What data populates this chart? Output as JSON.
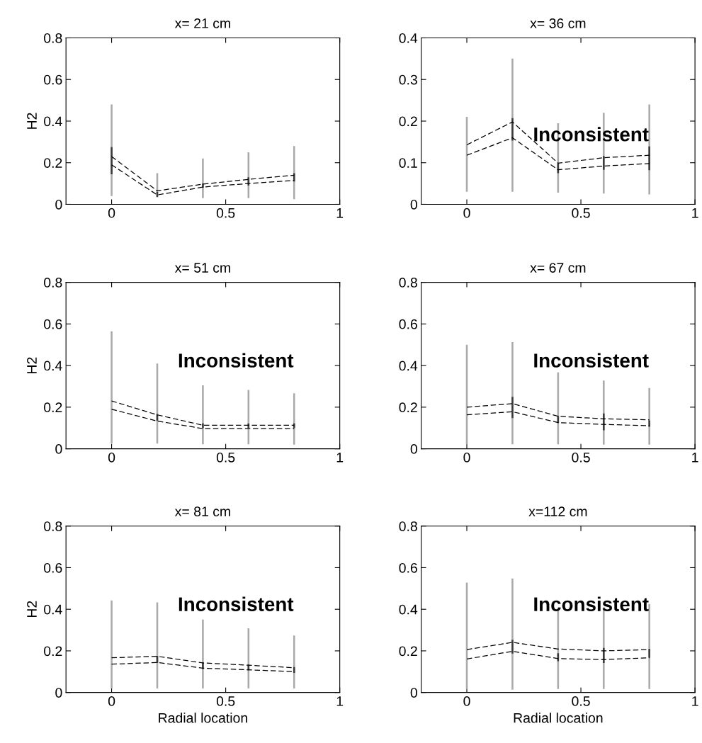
{
  "chart_data": [
    {
      "type": "line",
      "title": "x= 21 cm",
      "ylabel": "H2",
      "x": [
        0,
        0.2,
        0.4,
        0.6,
        0.8
      ],
      "xlim": [
        -0.2,
        1
      ],
      "xticks": [
        0,
        0.5,
        1
      ],
      "ylim": [
        0,
        0.8
      ],
      "yticks": [
        0,
        0.2,
        0.4,
        0.6,
        0.8
      ],
      "line_style": "dashed",
      "marker": "none",
      "grid": false,
      "series": [
        {
          "color": "#000000",
          "values": [
            0.23,
            0.065,
            0.097,
            0.12,
            0.14
          ]
        },
        {
          "color": "#000000",
          "values": [
            0.19,
            0.045,
            0.083,
            0.1,
            0.115
          ]
        },
        {
          "type": "bar",
          "color": "#aaaaaa",
          "base": [
            0.04,
            0.04,
            0.03,
            0.03,
            0.025
          ],
          "values": [
            0.44,
            0.11,
            0.19,
            0.22,
            0.255
          ]
        },
        {
          "type": "bar",
          "color": "#3c3c3c",
          "base": [
            0.145,
            0.035,
            0.08,
            0.09,
            0.11
          ],
          "values": [
            0.13,
            0.025,
            0.02,
            0.04,
            0.04
          ]
        }
      ]
    },
    {
      "type": "line",
      "title": "x= 36 cm",
      "annotations": [
        "Inconsistent"
      ],
      "x": [
        0,
        0.2,
        0.4,
        0.6,
        0.8
      ],
      "xlim": [
        -0.2,
        1
      ],
      "xticks": [
        0,
        0.5,
        1
      ],
      "ylim": [
        0,
        0.4
      ],
      "yticks": [
        0,
        0.1,
        0.2,
        0.3,
        0.4
      ],
      "line_style": "dashed",
      "marker": "none",
      "grid": false,
      "series": [
        {
          "color": "#000000",
          "values": [
            0.143,
            0.198,
            0.099,
            0.112,
            0.118
          ]
        },
        {
          "color": "#000000",
          "values": [
            0.118,
            0.16,
            0.083,
            0.092,
            0.098
          ]
        },
        {
          "type": "bar",
          "color": "#aaaaaa",
          "base": [
            0.03,
            0.03,
            0.028,
            0.026,
            0.024
          ],
          "values": [
            0.18,
            0.32,
            0.167,
            0.194,
            0.216
          ]
        },
        {
          "type": "bar",
          "color": "#3c3c3c",
          "base": [
            null,
            0.153,
            0.075,
            0.083,
            0.082
          ],
          "values": [
            null,
            0.054,
            0.023,
            0.033,
            0.057
          ]
        }
      ]
    },
    {
      "type": "line",
      "title": "x= 51 cm",
      "ylabel": "H2",
      "annotations": [
        "Inconsistent"
      ],
      "x": [
        0,
        0.2,
        0.4,
        0.6,
        0.8
      ],
      "xlim": [
        -0.2,
        1
      ],
      "xticks": [
        0,
        0.5,
        1
      ],
      "ylim": [
        0,
        0.8
      ],
      "yticks": [
        0,
        0.2,
        0.4,
        0.6,
        0.8
      ],
      "line_style": "dashed",
      "marker": "none",
      "grid": false,
      "series": [
        {
          "color": "#000000",
          "values": [
            0.23,
            0.163,
            0.113,
            0.113,
            0.113
          ]
        },
        {
          "color": "#000000",
          "values": [
            0.19,
            0.133,
            0.097,
            0.097,
            0.097
          ]
        },
        {
          "type": "bar",
          "color": "#aaaaaa",
          "base": [
            0.025,
            0.025,
            0.022,
            0.022,
            0.02
          ],
          "values": [
            0.54,
            0.385,
            0.283,
            0.261,
            0.247
          ]
        },
        {
          "type": "bar",
          "color": "#3c3c3c",
          "base": [
            null,
            0.135,
            0.1,
            0.1,
            0.1
          ],
          "values": [
            null,
            0.032,
            0.022,
            0.022,
            0.022
          ]
        }
      ]
    },
    {
      "type": "line",
      "title": "x= 67 cm",
      "annotations": [
        "Inconsistent"
      ],
      "x": [
        0,
        0.2,
        0.4,
        0.6,
        0.8
      ],
      "xlim": [
        -0.2,
        1
      ],
      "xticks": [
        0,
        0.5,
        1
      ],
      "ylim": [
        0,
        0.8
      ],
      "yticks": [
        0,
        0.2,
        0.4,
        0.6,
        0.8
      ],
      "line_style": "dashed",
      "marker": "none",
      "grid": false,
      "series": [
        {
          "color": "#000000",
          "values": [
            0.2,
            0.217,
            0.156,
            0.144,
            0.139
          ]
        },
        {
          "color": "#000000",
          "values": [
            0.163,
            0.178,
            0.126,
            0.117,
            0.111
          ]
        },
        {
          "type": "bar",
          "color": "#aaaaaa",
          "base": [
            0.022,
            0.022,
            0.022,
            0.02,
            0.02
          ],
          "values": [
            0.478,
            0.491,
            0.345,
            0.308,
            0.272
          ]
        },
        {
          "type": "bar",
          "color": "#3c3c3c",
          "base": [
            null,
            0.148,
            0.124,
            0.089,
            0.106
          ],
          "values": [
            null,
            0.102,
            0.034,
            0.081,
            0.03
          ]
        }
      ]
    },
    {
      "type": "line",
      "title": "x= 81 cm",
      "xlabel": "Radial location",
      "ylabel": "H2",
      "annotations": [
        "Inconsistent"
      ],
      "x": [
        0,
        0.2,
        0.4,
        0.6,
        0.8
      ],
      "xlim": [
        -0.2,
        1
      ],
      "xticks": [
        0,
        0.5,
        1
      ],
      "ylim": [
        0,
        0.8
      ],
      "yticks": [
        0,
        0.2,
        0.4,
        0.6,
        0.8
      ],
      "line_style": "dashed",
      "marker": "none",
      "grid": false,
      "series": [
        {
          "color": "#000000",
          "values": [
            0.167,
            0.174,
            0.142,
            0.131,
            0.119
          ]
        },
        {
          "color": "#000000",
          "values": [
            0.136,
            0.144,
            0.117,
            0.109,
            0.1
          ]
        },
        {
          "type": "bar",
          "color": "#aaaaaa",
          "base": [
            0.019,
            0.019,
            0.019,
            0.019,
            0.019
          ],
          "values": [
            0.423,
            0.414,
            0.331,
            0.29,
            0.255
          ]
        },
        {
          "type": "bar",
          "color": "#3c3c3c",
          "base": [
            null,
            0.142,
            0.113,
            0.106,
            0.094
          ],
          "values": [
            null,
            0.034,
            0.031,
            0.027,
            0.028
          ]
        }
      ]
    },
    {
      "type": "line",
      "title": "x=112 cm",
      "xlabel": "Radial location",
      "annotations": [
        "Inconsistent"
      ],
      "x": [
        0,
        0.2,
        0.4,
        0.6,
        0.8
      ],
      "xlim": [
        -0.2,
        1
      ],
      "xticks": [
        0,
        0.5,
        1
      ],
      "ylim": [
        0,
        0.8
      ],
      "yticks": [
        0,
        0.2,
        0.4,
        0.6,
        0.8
      ],
      "line_style": "dashed",
      "marker": "none",
      "grid": false,
      "series": [
        {
          "color": "#000000",
          "values": [
            0.206,
            0.241,
            0.209,
            0.2,
            0.206
          ]
        },
        {
          "color": "#000000",
          "values": [
            0.161,
            0.198,
            0.163,
            0.158,
            0.167
          ]
        },
        {
          "type": "bar",
          "color": "#aaaaaa",
          "base": [
            0.017,
            0.013,
            0.017,
            0.017,
            0.017
          ],
          "values": [
            0.511,
            0.535,
            0.383,
            0.393,
            0.408
          ]
        },
        {
          "type": "bar",
          "color": "#3c3c3c",
          "base": [
            null,
            0.187,
            0.15,
            0.142,
            0.167
          ],
          "values": [
            null,
            0.066,
            0.039,
            0.072,
            0.042
          ]
        }
      ]
    }
  ]
}
